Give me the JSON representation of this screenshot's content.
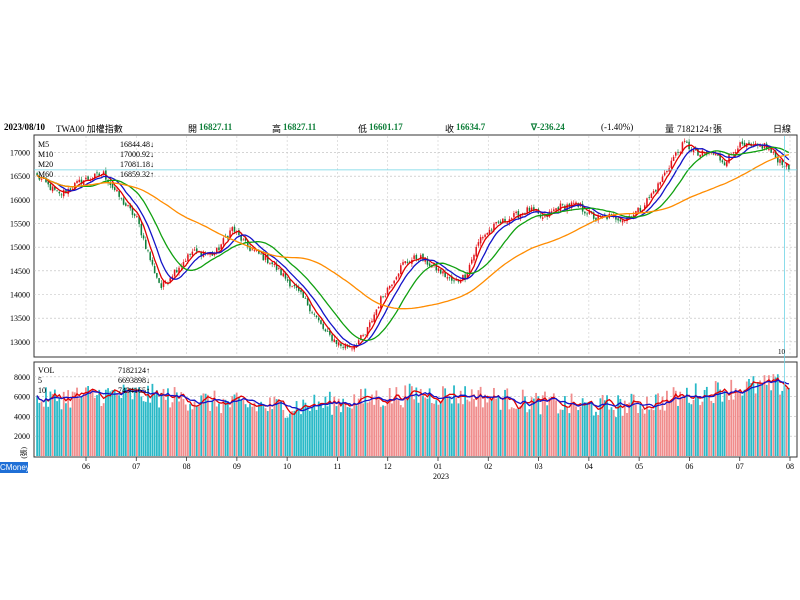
{
  "header": {
    "date": "2023/08/10",
    "symbol": "TWA00 加權指數",
    "open_label": "開",
    "open": "16827.11",
    "high_label": "高",
    "high": "16827.11",
    "low_label": "低",
    "low": "16601.17",
    "close_label": "收",
    "close": "16634.7",
    "change": "∇-236.24",
    "change_pct": "(-1.40%)",
    "volume_label": "量",
    "volume": "7182124↑張",
    "period": "日線"
  },
  "logo_text": "CMoney",
  "colors": {
    "up": "#e2141b",
    "down": "#0f7f3a",
    "ma5": "#e00000",
    "ma10": "#1414c8",
    "ma20": "#10a010",
    "ma60": "#ff8c00",
    "vol_up": "#f08c8c",
    "vol_down": "#29b9c7",
    "cursor": "#6fd4e6"
  },
  "chart_data": [
    {
      "type": "candlestick",
      "title": "",
      "legend": [
        {
          "name": "M5",
          "value": "16844.48↓",
          "color": "#e00000"
        },
        {
          "name": "M10",
          "value": "17000.92↓",
          "color": "#1414c8"
        },
        {
          "name": "M20",
          "value": "17081.18↓",
          "color": "#10a010"
        },
        {
          "name": "M60",
          "value": "16859.32↑",
          "color": "#ff8c00"
        }
      ],
      "ylim": [
        12700,
        17350
      ],
      "y_ticks": [
        13000,
        13500,
        14000,
        14500,
        15000,
        15500,
        16000,
        16500,
        17000
      ],
      "x_ticks": [
        "06",
        "07",
        "08",
        "09",
        "10",
        "11",
        "12",
        "01",
        "02",
        "03",
        "04",
        "05",
        "06",
        "07",
        "08"
      ],
      "x_year_label": "2023",
      "cursor_label": "10",
      "anchors": [
        {
          "i": 0,
          "c": 16500
        },
        {
          "i": 5,
          "c": 16300
        },
        {
          "i": 10,
          "c": 16100
        },
        {
          "i": 20,
          "c": 16400
        },
        {
          "i": 30,
          "c": 16550
        },
        {
          "i": 38,
          "c": 16000
        },
        {
          "i": 45,
          "c": 15600
        },
        {
          "i": 52,
          "c": 14600
        },
        {
          "i": 56,
          "c": 14150
        },
        {
          "i": 62,
          "c": 14500
        },
        {
          "i": 70,
          "c": 14900
        },
        {
          "i": 80,
          "c": 14850
        },
        {
          "i": 88,
          "c": 15400
        },
        {
          "i": 95,
          "c": 15000
        },
        {
          "i": 105,
          "c": 14700
        },
        {
          "i": 115,
          "c": 14200
        },
        {
          "i": 122,
          "c": 13800
        },
        {
          "i": 130,
          "c": 13200
        },
        {
          "i": 137,
          "c": 12920
        },
        {
          "i": 142,
          "c": 12900
        },
        {
          "i": 148,
          "c": 13150
        },
        {
          "i": 155,
          "c": 13900
        },
        {
          "i": 165,
          "c": 14650
        },
        {
          "i": 172,
          "c": 14800
        },
        {
          "i": 180,
          "c": 14550
        },
        {
          "i": 188,
          "c": 14250
        },
        {
          "i": 193,
          "c": 14400
        },
        {
          "i": 200,
          "c": 15200
        },
        {
          "i": 208,
          "c": 15500
        },
        {
          "i": 215,
          "c": 15650
        },
        {
          "i": 222,
          "c": 15800
        },
        {
          "i": 228,
          "c": 15600
        },
        {
          "i": 235,
          "c": 15850
        },
        {
          "i": 242,
          "c": 15900
        },
        {
          "i": 248,
          "c": 15750
        },
        {
          "i": 252,
          "c": 15600
        },
        {
          "i": 258,
          "c": 15650
        },
        {
          "i": 265,
          "c": 15600
        },
        {
          "i": 272,
          "c": 15800
        },
        {
          "i": 280,
          "c": 16300
        },
        {
          "i": 287,
          "c": 16900
        },
        {
          "i": 292,
          "c": 17200
        },
        {
          "i": 298,
          "c": 16950
        },
        {
          "i": 304,
          "c": 17000
        },
        {
          "i": 310,
          "c": 16800
        },
        {
          "i": 316,
          "c": 17150
        },
        {
          "i": 322,
          "c": 17100
        },
        {
          "i": 328,
          "c": 17150
        },
        {
          "i": 333,
          "c": 16900
        },
        {
          "i": 336,
          "c": 16800
        },
        {
          "i": 339,
          "c": 16634.7
        }
      ],
      "n_days": 340
    },
    {
      "type": "bar",
      "title": "",
      "legend": [
        {
          "name": "VOL",
          "value": "7182124↑",
          "color": "#1414c8"
        },
        {
          "name": "5",
          "value": "6693898↓",
          "color": "#e00000"
        },
        {
          "name": "10",
          "value": "7434165↑",
          "color": "#1414c8"
        }
      ],
      "ylim": [
        0,
        9400
      ],
      "y_ticks": [
        2000,
        4000,
        6000,
        8000
      ],
      "y_tick_labels": [
        "2000",
        "4000",
        "6000",
        "8000"
      ],
      "y_unit": "(張)"
    }
  ]
}
